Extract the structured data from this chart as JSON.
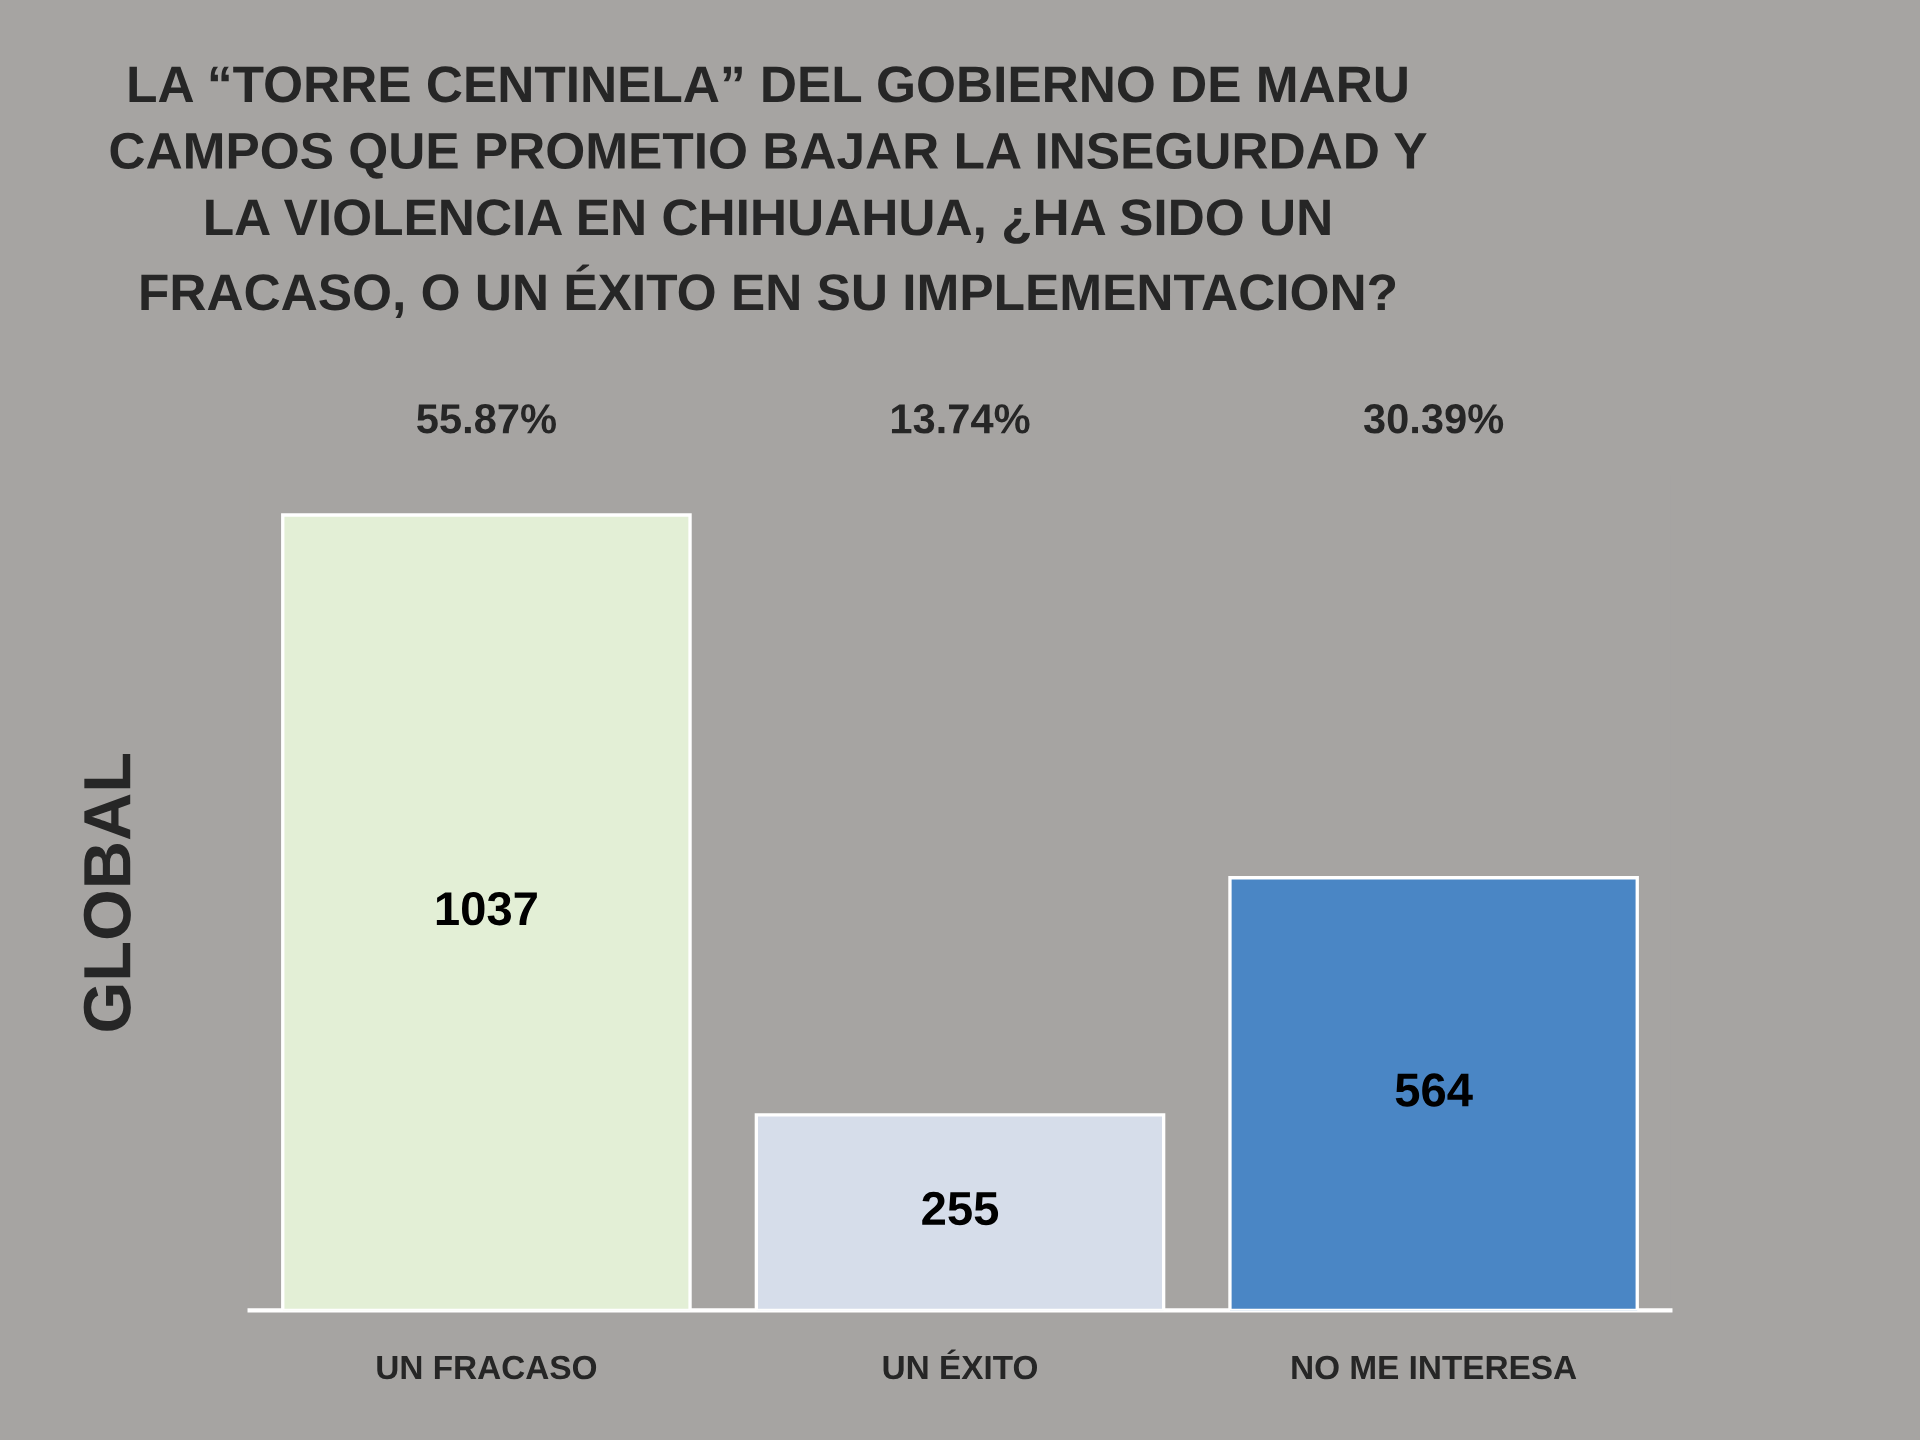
{
  "chart_data": {
    "type": "bar",
    "title": "LA “TORRE CENTINELA” DEL GOBIERNO DE MARU\nCAMPOS QUE PROMETIO BAJAR LA INSEGURDAD Y\nLA VIOLENCIA EN CHIHUAHUA, ¿HA SIDO UN\nFRACASO, O UN ÉXITO EN SU IMPLEMENTACION?",
    "ylabel": "GLOBAL",
    "categories": [
      "UN FRACASO",
      "UN ÉXITO",
      "NO ME INTERESA"
    ],
    "values": [
      1037,
      255,
      564
    ],
    "colors": [
      "#e3efd6",
      "#d6ddea",
      "#4a86c5"
    ],
    "data_labels": true,
    "annotations": [
      "55.87%",
      "13.74%",
      "30.39%"
    ],
    "tick_labels": "x",
    "grid": false,
    "legend": false
  }
}
